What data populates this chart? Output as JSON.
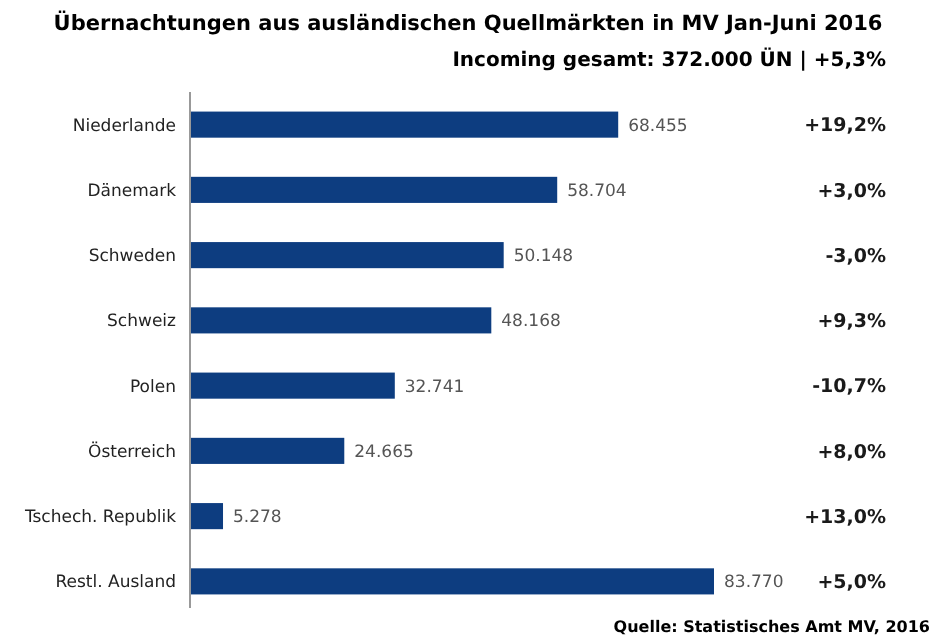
{
  "chart_data": {
    "type": "bar",
    "orientation": "horizontal",
    "title": "Übernachtungen aus ausländischen  Quellmärkten in MV Jan-Juni 2016",
    "subtitle": "Incoming gesamt: 372.000 ÜN | +5,3%",
    "categories": [
      "Niederlande",
      "Dänemark",
      "Schweden",
      "Schweiz",
      "Polen",
      "Österreich",
      "Tschech. Republik",
      "Restl. Ausland"
    ],
    "values": [
      68455,
      58704,
      50148,
      48168,
      32741,
      24665,
      5278,
      83770
    ],
    "value_labels": [
      "68.455",
      "58.704",
      "50.148",
      "48.168",
      "32.741",
      "24.665",
      "5.278",
      "83.770"
    ],
    "color": "#0d3d80",
    "annotations": [
      "+19,2%",
      "+3,0%",
      "-3,0%",
      "+9,3%",
      "-10,7%",
      "+8,0%",
      "+13,0%",
      "+5,0%",
      "Quelle: Statistisches Amt MV, 2016"
    ]
  }
}
